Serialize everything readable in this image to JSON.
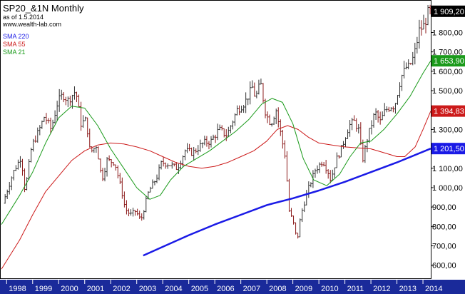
{
  "header": {
    "title": "SP20_&1N Monthly",
    "asof": "as of 1.5.2014",
    "site": "www.wealth-lab.com"
  },
  "colors": {
    "sma220": "#1a1ae6",
    "sma55": "#cc1a1a",
    "sma21": "#1a9a1a",
    "bar_up": "#303030",
    "bar_down": "#8b1a1a",
    "axis_band": "#1a2a9a",
    "price_tag": "#000000"
  },
  "chart_data": {
    "type": "line",
    "title": "SP20_&1N Monthly",
    "subtitle": "as of 1.5.2014",
    "ylim": [
      540,
      1960
    ],
    "xlim": [
      1997.8,
      2014.3
    ],
    "yticks": [
      "1 800,00",
      "1 700,00",
      "1 600,00",
      "1 500,00",
      "1 400,00",
      "1 300,00",
      "1 200,00",
      "1 100,00",
      "1 000,00",
      "900,00",
      "800,00",
      "700,00",
      "600,00"
    ],
    "ytick_values": [
      1800,
      1700,
      1600,
      1500,
      1400,
      1300,
      1200,
      1100,
      1000,
      900,
      800,
      700,
      600
    ],
    "xticks": [
      "1998",
      "1999",
      "2000",
      "2001",
      "2002",
      "2003",
      "2004",
      "2005",
      "2006",
      "2007",
      "2008",
      "2009",
      "2010",
      "2011",
      "2012",
      "2013",
      "2014"
    ],
    "xtick_values": [
      1998,
      1999,
      2000,
      2001,
      2002,
      2003,
      2004,
      2005,
      2006,
      2007,
      2008,
      2009,
      2010,
      2011,
      2012,
      2013,
      2014
    ],
    "price_tags": [
      {
        "label": "1 909,20",
        "value": 1909.2,
        "color": "#000000"
      },
      {
        "label": "1 653,90",
        "value": 1653.9,
        "color": "#1a9a1a"
      },
      {
        "label": "1 394,83",
        "value": 1394.83,
        "color": "#cc1a1a"
      },
      {
        "label": "1 201,50",
        "value": 1201.5,
        "color": "#1a1ae6"
      }
    ],
    "price_anchors": [
      [
        1997.9,
        920
      ],
      [
        1998.3,
        1080
      ],
      [
        1998.6,
        1160
      ],
      [
        1998.75,
        980
      ],
      [
        1999.0,
        1210
      ],
      [
        1999.3,
        1300
      ],
      [
        1999.5,
        1370
      ],
      [
        1999.75,
        1300
      ],
      [
        2000.0,
        1440
      ],
      [
        2000.2,
        1480
      ],
      [
        2000.4,
        1450
      ],
      [
        2000.7,
        1500
      ],
      [
        2000.9,
        1330
      ],
      [
        2001.1,
        1350
      ],
      [
        2001.25,
        1180
      ],
      [
        2001.5,
        1220
      ],
      [
        2001.7,
        1040
      ],
      [
        2001.9,
        1140
      ],
      [
        2002.2,
        1130
      ],
      [
        2002.5,
        960
      ],
      [
        2002.6,
        890
      ],
      [
        2002.8,
        860
      ],
      [
        2003.0,
        880
      ],
      [
        2003.2,
        830
      ],
      [
        2003.5,
        980
      ],
      [
        2003.8,
        1050
      ],
      [
        2004.0,
        1130
      ],
      [
        2004.3,
        1120
      ],
      [
        2004.6,
        1100
      ],
      [
        2004.9,
        1190
      ],
      [
        2005.2,
        1180
      ],
      [
        2005.6,
        1230
      ],
      [
        2005.9,
        1240
      ],
      [
        2006.2,
        1300
      ],
      [
        2006.5,
        1270
      ],
      [
        2006.9,
        1400
      ],
      [
        2007.2,
        1440
      ],
      [
        2007.5,
        1520
      ],
      [
        2007.6,
        1460
      ],
      [
        2007.8,
        1540
      ],
      [
        2008.0,
        1380
      ],
      [
        2008.2,
        1330
      ],
      [
        2008.4,
        1400
      ],
      [
        2008.6,
        1260
      ],
      [
        2008.75,
        1160
      ],
      [
        2008.9,
        880
      ],
      [
        2009.1,
        800
      ],
      [
        2009.2,
        720
      ],
      [
        2009.35,
        860
      ],
      [
        2009.6,
        980
      ],
      [
        2009.9,
        1090
      ],
      [
        2010.2,
        1140
      ],
      [
        2010.4,
        1080
      ],
      [
        2010.5,
        1040
      ],
      [
        2010.7,
        1140
      ],
      [
        2010.9,
        1200
      ],
      [
        2011.2,
        1320
      ],
      [
        2011.4,
        1340
      ],
      [
        2011.6,
        1290
      ],
      [
        2011.7,
        1130
      ],
      [
        2011.9,
        1250
      ],
      [
        2012.2,
        1390
      ],
      [
        2012.4,
        1340
      ],
      [
        2012.6,
        1400
      ],
      [
        2012.8,
        1420
      ],
      [
        2012.95,
        1420
      ],
      [
        2013.2,
        1570
      ],
      [
        2013.4,
        1620
      ],
      [
        2013.5,
        1620
      ],
      [
        2013.7,
        1680
      ],
      [
        2013.9,
        1810
      ],
      [
        2014.1,
        1840
      ],
      [
        2014.25,
        1909
      ]
    ],
    "sma21": [
      [
        1997.8,
        810
      ],
      [
        1998.5,
        960
      ],
      [
        1999.0,
        1080
      ],
      [
        1999.5,
        1230
      ],
      [
        2000.0,
        1360
      ],
      [
        2000.5,
        1420
      ],
      [
        2001.0,
        1410
      ],
      [
        2001.5,
        1320
      ],
      [
        2002.0,
        1200
      ],
      [
        2002.5,
        1100
      ],
      [
        2003.0,
        1000
      ],
      [
        2003.5,
        940
      ],
      [
        2003.9,
        960
      ],
      [
        2004.3,
        1040
      ],
      [
        2004.8,
        1110
      ],
      [
        2005.3,
        1150
      ],
      [
        2005.8,
        1190
      ],
      [
        2006.3,
        1240
      ],
      [
        2006.8,
        1290
      ],
      [
        2007.3,
        1350
      ],
      [
        2007.8,
        1430
      ],
      [
        2008.2,
        1460
      ],
      [
        2008.6,
        1440
      ],
      [
        2009.0,
        1330
      ],
      [
        2009.4,
        1150
      ],
      [
        2009.8,
        1040
      ],
      [
        2010.3,
        1010
      ],
      [
        2010.8,
        1070
      ],
      [
        2011.2,
        1160
      ],
      [
        2011.6,
        1230
      ],
      [
        2012.0,
        1240
      ],
      [
        2012.5,
        1300
      ],
      [
        2013.0,
        1380
      ],
      [
        2013.5,
        1470
      ],
      [
        2014.0,
        1590
      ],
      [
        2014.3,
        1653.9
      ]
    ],
    "sma55": [
      [
        1997.8,
        580
      ],
      [
        1998.5,
        730
      ],
      [
        1999.0,
        860
      ],
      [
        1999.5,
        980
      ],
      [
        2000.0,
        1060
      ],
      [
        2000.5,
        1140
      ],
      [
        2001.0,
        1190
      ],
      [
        2001.5,
        1220
      ],
      [
        2002.0,
        1230
      ],
      [
        2002.5,
        1225
      ],
      [
        2003.0,
        1210
      ],
      [
        2003.5,
        1190
      ],
      [
        2004.0,
        1160
      ],
      [
        2004.5,
        1130
      ],
      [
        2005.0,
        1110
      ],
      [
        2005.5,
        1100
      ],
      [
        2006.0,
        1110
      ],
      [
        2006.5,
        1130
      ],
      [
        2007.0,
        1160
      ],
      [
        2007.5,
        1190
      ],
      [
        2008.0,
        1240
      ],
      [
        2008.4,
        1300
      ],
      [
        2008.8,
        1320
      ],
      [
        2009.2,
        1300
      ],
      [
        2009.6,
        1260
      ],
      [
        2010.0,
        1230
      ],
      [
        2010.5,
        1220
      ],
      [
        2011.0,
        1210
      ],
      [
        2011.5,
        1205
      ],
      [
        2012.0,
        1200
      ],
      [
        2012.5,
        1180
      ],
      [
        2013.0,
        1160
      ],
      [
        2013.3,
        1160
      ],
      [
        2013.7,
        1210
      ],
      [
        2014.0,
        1300
      ],
      [
        2014.3,
        1394.83
      ]
    ],
    "sma220": [
      [
        2003.25,
        650
      ],
      [
        2004.0,
        695
      ],
      [
        2005.0,
        755
      ],
      [
        2006.0,
        810
      ],
      [
        2007.0,
        860
      ],
      [
        2008.0,
        910
      ],
      [
        2009.0,
        945
      ],
      [
        2010.0,
        985
      ],
      [
        2011.0,
        1030
      ],
      [
        2012.0,
        1080
      ],
      [
        2013.0,
        1130
      ],
      [
        2014.3,
        1201.5
      ]
    ],
    "series": [
      {
        "name": "SMA 220",
        "values": [
          650,
          695,
          755,
          810,
          860,
          910,
          945,
          985,
          1030,
          1080,
          1130,
          1201.5
        ]
      },
      {
        "name": "SMA 55",
        "values": [
          580,
          730,
          860,
          980,
          1060,
          1140,
          1190,
          1220,
          1230,
          1225,
          1210,
          1190,
          1160,
          1130,
          1110,
          1100,
          1110,
          1130,
          1160,
          1190,
          1240,
          1300,
          1320,
          1300,
          1260,
          1230,
          1220,
          1210,
          1205,
          1200,
          1180,
          1160,
          1160,
          1210,
          1300,
          1394.83
        ]
      },
      {
        "name": "SMA 21",
        "values": [
          810,
          960,
          1080,
          1230,
          1360,
          1420,
          1410,
          1320,
          1200,
          1100,
          1000,
          940,
          960,
          1040,
          1110,
          1150,
          1190,
          1240,
          1290,
          1350,
          1430,
          1460,
          1440,
          1330,
          1150,
          1040,
          1010,
          1070,
          1160,
          1230,
          1240,
          1300,
          1380,
          1470,
          1590,
          1653.9
        ]
      }
    ],
    "legend": [
      "SMA 220",
      "SMA 55",
      "SMA 21"
    ],
    "legend_position": "top-left",
    "grid": false
  }
}
